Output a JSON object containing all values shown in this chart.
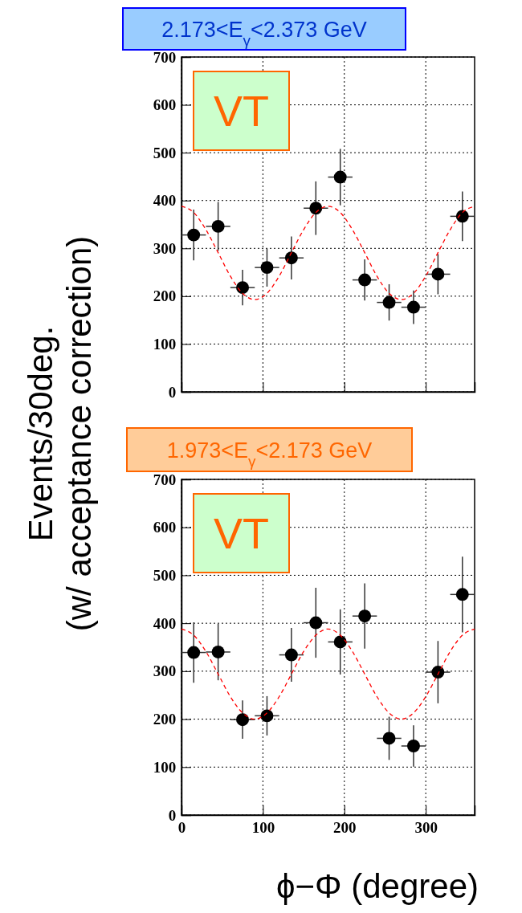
{
  "chart_data": [
    {
      "type": "scatter",
      "title": "2.173<E$_{γ}$<2.373 GeV",
      "ylabel": "Events/30deg.\n(w/ acceptance correction)",
      "annotations": [
        "VT"
      ],
      "xlim": [
        0,
        360
      ],
      "xticks": [
        0,
        100,
        200,
        300
      ],
      "ylim": [
        0,
        700
      ],
      "yticks": [
        0,
        100,
        200,
        300,
        400,
        500,
        600,
        700
      ],
      "grid": true,
      "tick_labels": "y",
      "series": [
        {
          "type": "scatter",
          "color": "#000000",
          "marker": "circle",
          "x": [
            15,
            45,
            75,
            105,
            135,
            165,
            195,
            225,
            255,
            285,
            315,
            345
          ],
          "values": [
            328,
            346,
            218,
            260,
            280,
            384,
            449,
            234,
            187,
            177,
            246,
            367
          ],
          "errors": [
            53,
            51,
            37,
            40,
            45,
            56,
            59,
            43,
            38,
            35,
            42,
            52
          ],
          "xerrors": [
            15,
            15,
            15,
            15,
            15,
            15,
            15,
            15,
            15,
            15,
            15,
            15
          ]
        },
        {
          "type": "line",
          "color": "#ff0000",
          "line_style": "dashed",
          "marker": "none",
          "x": [
            0,
            15,
            30,
            45,
            60,
            75,
            90,
            105,
            120,
            135,
            150,
            165,
            180,
            195,
            210,
            225,
            240,
            255,
            270,
            285,
            300,
            315,
            330,
            345,
            360
          ],
          "values": [
            388,
            375,
            339,
            291,
            242,
            206,
            193,
            206,
            242,
            291,
            339,
            375,
            388,
            375,
            339,
            291,
            242,
            206,
            193,
            206,
            242,
            291,
            339,
            375,
            388
          ]
        }
      ]
    },
    {
      "type": "scatter",
      "title": "1.973<E$_{γ}$<2.173 GeV",
      "xlabel": "ϕ−Φ (degree)",
      "annotations": [
        "VT"
      ],
      "xlim": [
        0,
        360
      ],
      "xticks": [
        0,
        100,
        200,
        300
      ],
      "ylim": [
        0,
        700
      ],
      "yticks": [
        0,
        100,
        200,
        300,
        400,
        500,
        600,
        700
      ],
      "grid": true,
      "series": [
        {
          "type": "scatter",
          "color": "#000000",
          "marker": "circle",
          "x": [
            15,
            45,
            75,
            105,
            135,
            165,
            195,
            225,
            255,
            285,
            315,
            345
          ],
          "values": [
            339,
            340,
            199,
            207,
            334,
            401,
            361,
            415,
            160,
            144,
            298,
            460
          ],
          "errors": [
            63,
            59,
            40,
            41,
            56,
            73,
            68,
            68,
            45,
            43,
            65,
            79
          ],
          "xerrors": [
            15,
            15,
            15,
            15,
            15,
            15,
            15,
            15,
            15,
            15,
            15,
            15
          ]
        },
        {
          "type": "line",
          "color": "#ff0000",
          "line_style": "dashed",
          "marker": "none",
          "x": [
            0,
            15,
            30,
            45,
            60,
            75,
            90,
            105,
            120,
            135,
            150,
            165,
            180,
            195,
            210,
            225,
            240,
            255,
            270,
            285,
            300,
            315,
            330,
            345,
            360
          ],
          "values": [
            388,
            375,
            341,
            294,
            247,
            213,
            200,
            213,
            247,
            294,
            341,
            375,
            388,
            375,
            341,
            294,
            247,
            213,
            200,
            213,
            247,
            294,
            341,
            375,
            388
          ]
        }
      ]
    }
  ]
}
